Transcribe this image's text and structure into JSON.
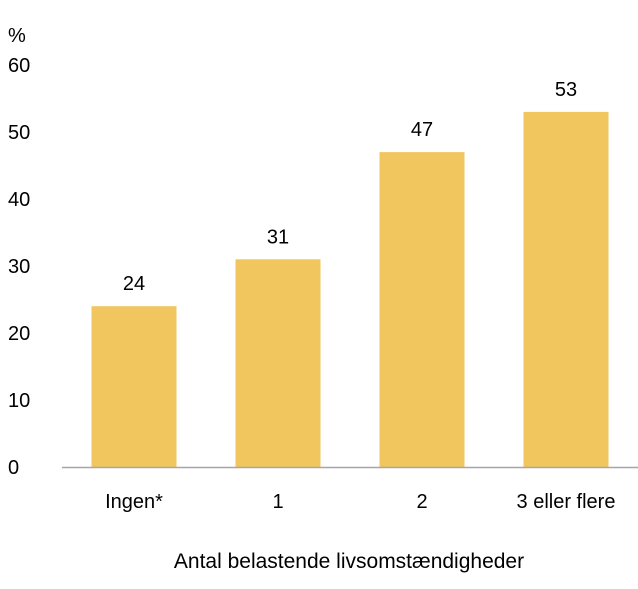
{
  "chart_data": {
    "type": "bar",
    "unit_label": "%",
    "xlabel": "Antal belastende livsomstændigheder",
    "categories": [
      "Ingen*",
      "1",
      "2",
      "3 eller flere"
    ],
    "values": [
      24,
      31,
      47,
      53
    ],
    "data_labels": [
      "24",
      "31",
      "47",
      "53"
    ],
    "ylim": [
      0,
      60
    ],
    "yticks": [
      0,
      10,
      20,
      30,
      40,
      50,
      60
    ],
    "grid": false,
    "bar_color": "#F1C65E",
    "axis_color": "#A6A6A6"
  }
}
